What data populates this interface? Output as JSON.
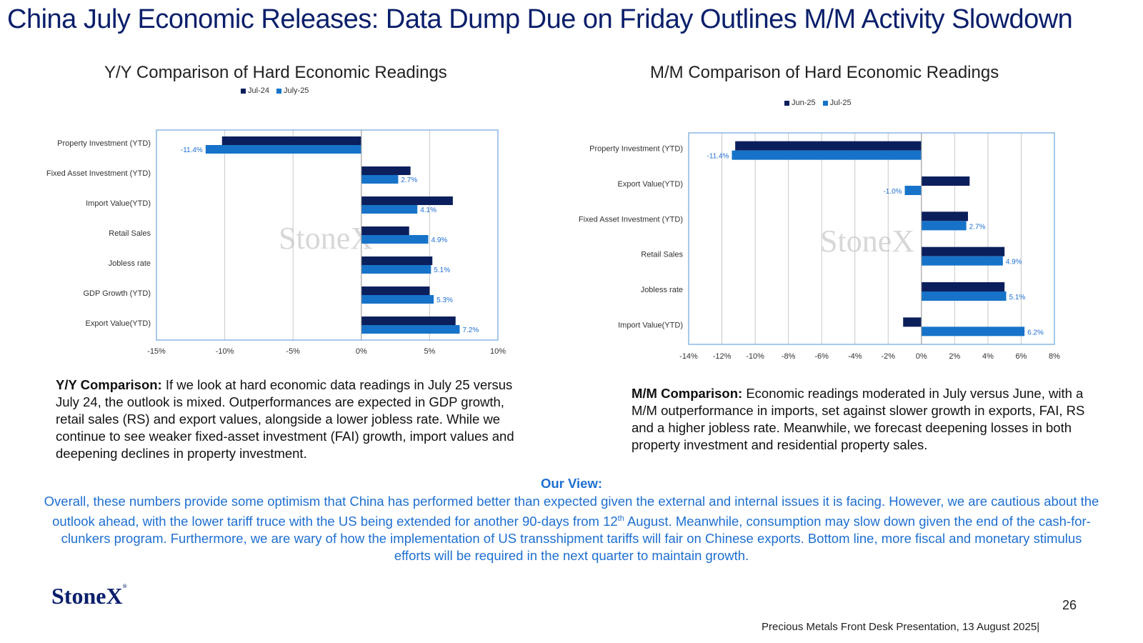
{
  "page": {
    "title": "China July Economic Releases: Data Dump Due on Friday Outlines M/M Activity Slowdown",
    "page_number": "26",
    "footer_caption": "Precious Metals Front Desk Presentation, 13 August 2025|",
    "footer_logo": "StoneX",
    "footer_logo_mark": "®",
    "watermark": "StoneX"
  },
  "colors": {
    "dark_navy": "#0b1f5c",
    "bright_blue": "#1673c9",
    "accent_text": "#1e6fd0",
    "title_text": "#0a1f6b"
  },
  "commentary": {
    "yy_lead": "Y/Y Comparison:",
    "yy_text": " If we look at hard economic data readings in July 25 versus July 24, the outlook is mixed. Outperformances are expected in GDP growth, retail sales (RS) and export values, alongside a lower jobless rate. While we continue to see weaker fixed-asset investment (FAI) growth, import values and deepening declines in property investment.",
    "mm_lead": "M/M Comparison:",
    "mm_text": " Economic readings moderated  in July versus June, with a M/M outperformance in imports, set against slower growth in exports, FAI, RS and a higher jobless rate. Meanwhile, we forecast deepening losses in both property investment and residential property sales."
  },
  "our_view": {
    "heading": "Our View:",
    "body_part1": "Overall, these numbers provide some optimism that China has performed better than expected given the external and internal issues it is facing. However, we are cautious about the outlook ahead, with the lower tariff truce with the US being extended for another 90-days from 12",
    "body_sup": "th",
    "body_part2": " August. Meanwhile, consumption may slow down given the end of the cash-for-clunkers program. Furthermore, we are wary of how the implementation of US transshipment tariffs will fair on Chinese exports. Bottom line, more fiscal and monetary stimulus efforts will be required in the next quarter to maintain growth."
  },
  "chart_data": [
    {
      "type": "bar",
      "orientation": "horizontal",
      "title": "Y/Y Comparison of Hard Economic Readings",
      "categories": [
        "Property Investment (YTD)",
        "Fixed Asset Investment (YTD)",
        "Import Value(YTD)",
        "Retail Sales",
        "Jobless rate",
        "GDP Growth (YTD)",
        "Export Value(YTD)"
      ],
      "series": [
        {
          "name": "Jul-24",
          "values": [
            -10.2,
            3.6,
            6.7,
            3.5,
            5.2,
            5.0,
            6.9
          ]
        },
        {
          "name": "July-25",
          "values": [
            -11.4,
            2.7,
            4.1,
            4.9,
            5.1,
            5.3,
            7.2
          ]
        }
      ],
      "data_labels": [
        "-11.4%",
        "2.7%",
        "4.1%",
        "4.9%",
        "5.1%",
        "5.3%",
        "7.2%"
      ],
      "xlim": [
        -15,
        10
      ],
      "xticks": [
        -15,
        -10,
        -5,
        0,
        5,
        10
      ],
      "xtick_labels": [
        "-15%",
        "-10%",
        "-5%",
        "0%",
        "5%",
        "10%"
      ],
      "grid": true,
      "legend_position": "top"
    },
    {
      "type": "bar",
      "orientation": "horizontal",
      "title": "M/M Comparison of Hard Economic Readings",
      "categories": [
        "Property Investment (YTD)",
        "Export Value(YTD)",
        "Fixed Asset Investment (YTD)",
        "Retail Sales",
        "Jobless rate",
        "Import Value(YTD)"
      ],
      "series": [
        {
          "name": "Jun-25",
          "values": [
            -11.2,
            2.9,
            2.8,
            5.0,
            5.0,
            -1.1
          ]
        },
        {
          "name": "Jul-25",
          "values": [
            -11.4,
            -1.0,
            2.7,
            4.9,
            5.1,
            6.2
          ]
        }
      ],
      "data_labels": [
        "-11.4%",
        "-1.0%",
        "2.7%",
        "4.9%",
        "5.1%",
        "6.2%"
      ],
      "xlim": [
        -14,
        8
      ],
      "xticks": [
        -14,
        -12,
        -10,
        -8,
        -6,
        -4,
        -2,
        0,
        2,
        4,
        6,
        8
      ],
      "xtick_labels": [
        "-14%",
        "-12%",
        "-10%",
        "-8%",
        "-6%",
        "-4%",
        "-2%",
        "0%",
        "2%",
        "4%",
        "6%",
        "8%"
      ],
      "grid": true,
      "legend_position": "top"
    }
  ]
}
